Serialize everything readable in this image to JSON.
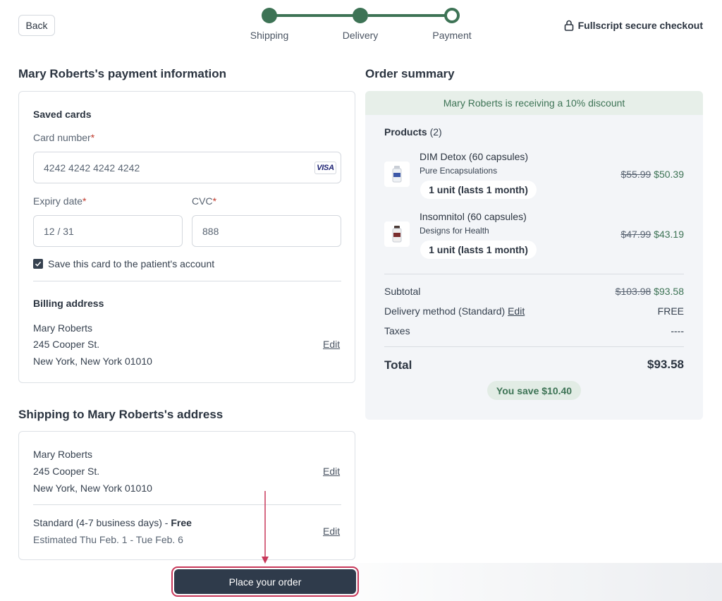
{
  "header": {
    "back_label": "Back",
    "steps": [
      "Shipping",
      "Delivery",
      "Payment"
    ],
    "secure_label": "Fullscript secure checkout"
  },
  "payment": {
    "title": "Mary Roberts's payment information",
    "saved_cards_label": "Saved cards",
    "card_number_label": "Card number",
    "card_number_value": "4242 4242 4242 4242",
    "card_brand": "VISA",
    "expiry_label": "Expiry date",
    "expiry_value": "12 / 31",
    "cvc_label": "CVC",
    "cvc_value": "888",
    "save_card_label": "Save this card to the patient's account",
    "save_card_checked": true,
    "required_mark": "*",
    "billing_title": "Billing address",
    "billing_name": "Mary Roberts",
    "billing_street": "245 Cooper St.",
    "billing_city": "New York, New York 01010",
    "edit_label": "Edit"
  },
  "shipping": {
    "title": "Shipping to Mary Roberts's address",
    "name": "Mary Roberts",
    "street": "245 Cooper St.",
    "city": "New York, New York 01010",
    "edit_label": "Edit",
    "method_text": "Standard (4-7 business days) - ",
    "method_price": "Free",
    "estimate": "Estimated Thu Feb. 1 - Tue Feb. 6"
  },
  "summary": {
    "title": "Order summary",
    "discount_text": "Mary Roberts is receiving a 10% discount",
    "products_label": "Products",
    "products_count": "(2)",
    "products": [
      {
        "name": "DIM Detox (60 capsules)",
        "brand": "Pure Encapsulations",
        "unit": "1 unit (lasts 1 month)",
        "old_price": "$55.99",
        "new_price": "$50.39"
      },
      {
        "name": "Insomnitol (60 capsules)",
        "brand": "Designs for Health",
        "unit": "1 unit (lasts 1 month)",
        "old_price": "$47.99",
        "new_price": "$43.19"
      }
    ],
    "subtotal_label": "Subtotal",
    "subtotal_old": "$103.98",
    "subtotal_new": "$93.58",
    "delivery_label": "Delivery method (Standard)",
    "delivery_edit": "Edit",
    "delivery_value": "FREE",
    "taxes_label": "Taxes",
    "taxes_value": "----",
    "total_label": "Total",
    "total_value": "$93.58",
    "save_text": "You save $10.40"
  },
  "actions": {
    "place_order_label": "Place your order"
  },
  "colors": {
    "accent_green": "#3d7355",
    "button_dark": "#2f3b4b",
    "highlight_red": "#c8385a"
  }
}
